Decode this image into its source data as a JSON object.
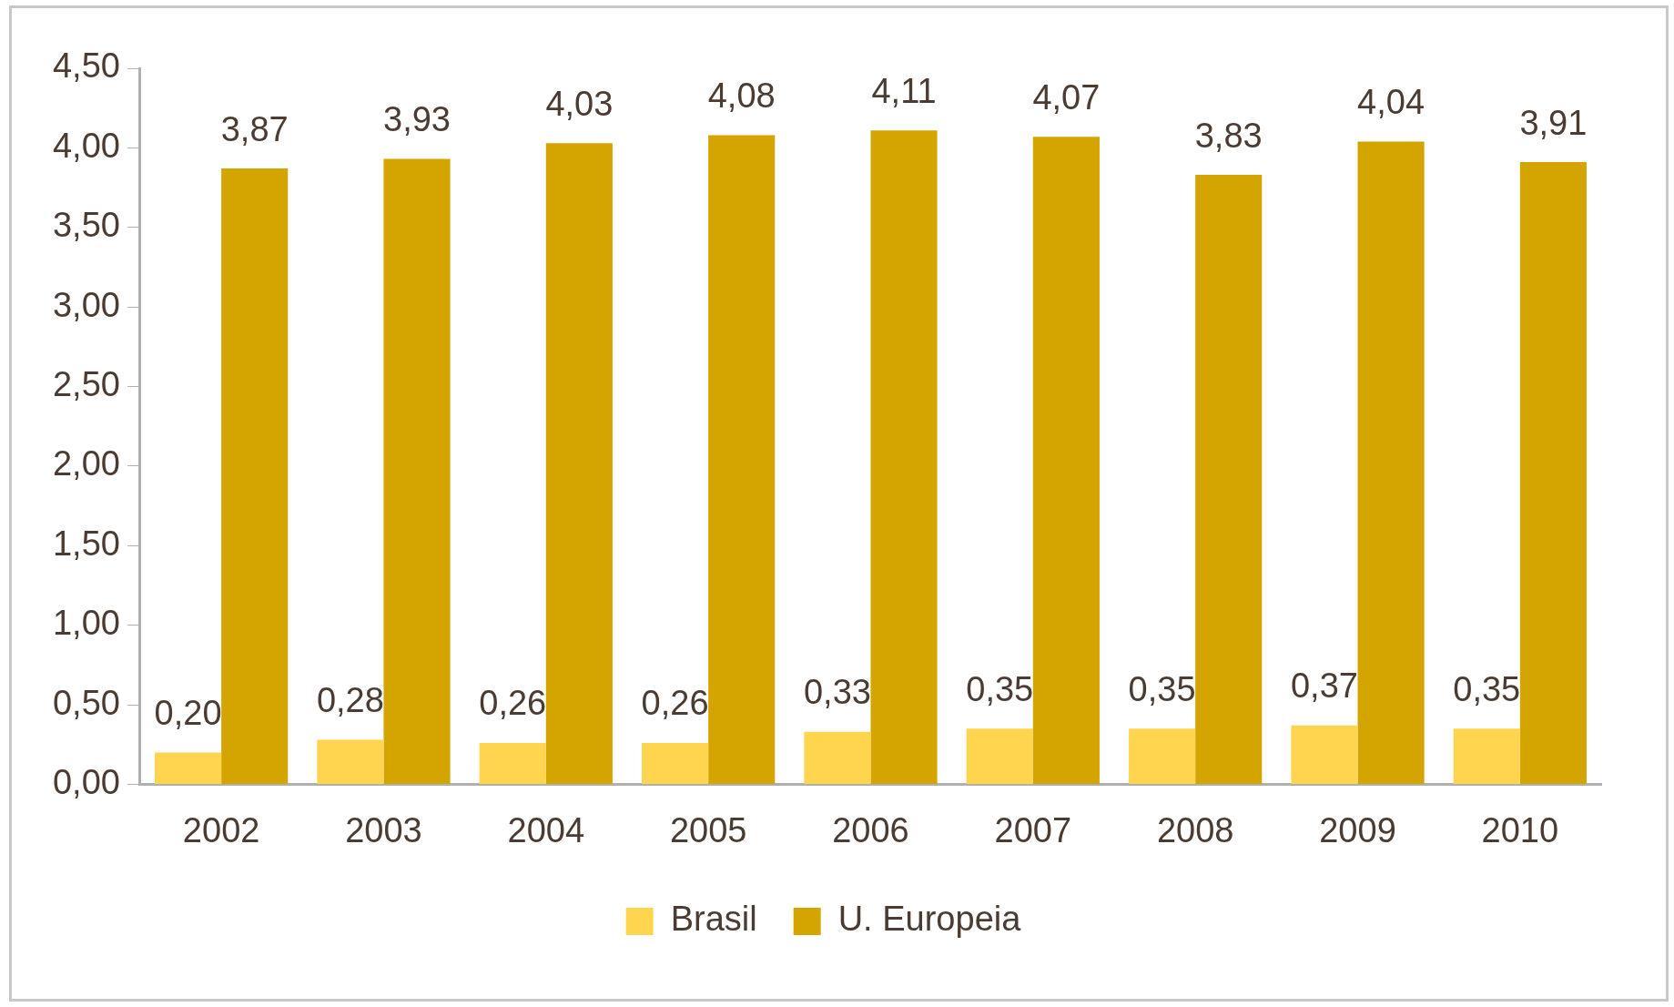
{
  "chart_data": {
    "type": "bar",
    "categories": [
      "2002",
      "2003",
      "2004",
      "2005",
      "2006",
      "2007",
      "2008",
      "2009",
      "2010"
    ],
    "series": [
      {
        "name": "Brasil",
        "color": "#ffd54f",
        "values": [
          0.2,
          0.28,
          0.26,
          0.26,
          0.33,
          0.35,
          0.35,
          0.37,
          0.35
        ],
        "value_labels": [
          "0,20",
          "0,28",
          "0,26",
          "0,26",
          "0,33",
          "0,35",
          "0,35",
          "0,37",
          "0,35"
        ]
      },
      {
        "name": "U. Europeia",
        "color": "#d4a500",
        "values": [
          3.87,
          3.93,
          4.03,
          4.08,
          4.11,
          4.07,
          3.83,
          4.04,
          3.91
        ],
        "value_labels": [
          "3,87",
          "3,93",
          "4,03",
          "4,08",
          "4,11",
          "4,07",
          "3,83",
          "4,04",
          "3,91"
        ]
      }
    ],
    "ylim": [
      0,
      4.5
    ],
    "yticks": [
      {
        "value": 0,
        "label": "0,00"
      },
      {
        "value": 0.5,
        "label": "0,50"
      },
      {
        "value": 1,
        "label": "1,00"
      },
      {
        "value": 1.5,
        "label": "1,50"
      },
      {
        "value": 2,
        "label": "2,00"
      },
      {
        "value": 2.5,
        "label": "2,50"
      },
      {
        "value": 3,
        "label": "3,00"
      },
      {
        "value": 3.5,
        "label": "3,50"
      },
      {
        "value": 4,
        "label": "4,00"
      },
      {
        "value": 4.5,
        "label": "4,50"
      }
    ],
    "grid": false,
    "legend": "bottom"
  }
}
